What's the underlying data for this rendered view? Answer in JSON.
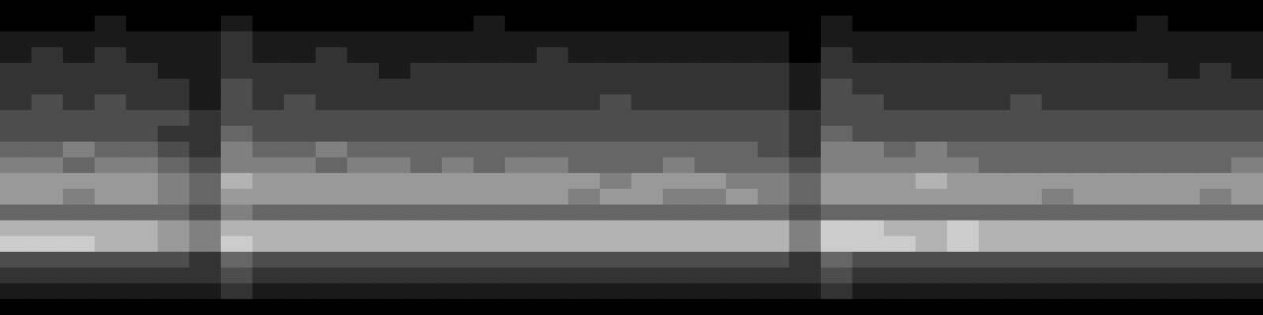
{
  "chart_data": {
    "type": "heatmap",
    "tick_labels": false,
    "grid": false,
    "color_range": [
      0,
      10
    ],
    "cells": [
      [
        0,
        0,
        0,
        0,
        0,
        0,
        0,
        0,
        0,
        0,
        0,
        0,
        0,
        0,
        0,
        0,
        0,
        0,
        0,
        0,
        0,
        0,
        0,
        0,
        0,
        0,
        0,
        0,
        0,
        0,
        0,
        0,
        0,
        0,
        0,
        0,
        0,
        0,
        0,
        0
      ],
      [
        0,
        0,
        0,
        1,
        0,
        0,
        0,
        1,
        0,
        0,
        0,
        0,
        0,
        0,
        0,
        1,
        0,
        0,
        0,
        0,
        0,
        0,
        0,
        0,
        0,
        0,
        1,
        0,
        0,
        0,
        0,
        0,
        0,
        0,
        0,
        0,
        1,
        0,
        0,
        0
      ],
      [
        1,
        1,
        1,
        1,
        1,
        1,
        1,
        2,
        1,
        1,
        1,
        1,
        1,
        1,
        1,
        1,
        1,
        1,
        1,
        1,
        1,
        1,
        1,
        1,
        1,
        0,
        1,
        1,
        1,
        1,
        1,
        1,
        1,
        1,
        1,
        1,
        1,
        1,
        1,
        1
      ],
      [
        1,
        2,
        1,
        2,
        1,
        1,
        1,
        2,
        1,
        1,
        2,
        1,
        1,
        1,
        1,
        1,
        1,
        2,
        1,
        1,
        1,
        1,
        1,
        1,
        1,
        0,
        2,
        1,
        1,
        1,
        1,
        1,
        1,
        1,
        1,
        1,
        1,
        1,
        1,
        1
      ],
      [
        2,
        2,
        2,
        2,
        2,
        1,
        1,
        2,
        2,
        2,
        2,
        2,
        1,
        2,
        2,
        2,
        2,
        2,
        2,
        2,
        2,
        2,
        2,
        2,
        2,
        1,
        2,
        2,
        2,
        2,
        2,
        2,
        2,
        2,
        2,
        2,
        2,
        1,
        2,
        1
      ],
      [
        2,
        2,
        2,
        2,
        2,
        2,
        1,
        3,
        2,
        2,
        2,
        2,
        2,
        2,
        2,
        2,
        2,
        2,
        2,
        2,
        2,
        2,
        2,
        2,
        2,
        1,
        3,
        2,
        2,
        2,
        2,
        2,
        2,
        2,
        2,
        2,
        2,
        2,
        2,
        2
      ],
      [
        2,
        3,
        2,
        3,
        2,
        2,
        1,
        3,
        2,
        3,
        2,
        2,
        2,
        2,
        2,
        2,
        2,
        2,
        2,
        3,
        2,
        2,
        2,
        2,
        2,
        1,
        3,
        3,
        2,
        2,
        2,
        2,
        3,
        2,
        2,
        2,
        2,
        2,
        2,
        2
      ],
      [
        3,
        3,
        3,
        3,
        3,
        3,
        2,
        3,
        3,
        3,
        3,
        3,
        3,
        3,
        3,
        3,
        3,
        3,
        3,
        3,
        3,
        3,
        3,
        3,
        3,
        2,
        3,
        3,
        3,
        3,
        3,
        3,
        3,
        3,
        3,
        3,
        3,
        3,
        3,
        3
      ],
      [
        3,
        3,
        3,
        3,
        3,
        2,
        2,
        4,
        3,
        3,
        3,
        3,
        3,
        3,
        3,
        3,
        3,
        3,
        3,
        3,
        3,
        3,
        3,
        3,
        3,
        2,
        4,
        3,
        3,
        3,
        3,
        3,
        3,
        3,
        3,
        3,
        3,
        3,
        3,
        3
      ],
      [
        4,
        4,
        5,
        4,
        4,
        3,
        2,
        5,
        4,
        4,
        5,
        4,
        4,
        4,
        4,
        4,
        4,
        4,
        4,
        4,
        4,
        4,
        4,
        4,
        3,
        2,
        5,
        5,
        4,
        5,
        4,
        4,
        4,
        4,
        4,
        4,
        4,
        4,
        4,
        4
      ],
      [
        5,
        5,
        4,
        5,
        5,
        4,
        3,
        5,
        5,
        5,
        4,
        5,
        5,
        4,
        5,
        4,
        5,
        5,
        4,
        4,
        4,
        5,
        4,
        4,
        4,
        3,
        5,
        5,
        5,
        5,
        5,
        4,
        4,
        4,
        4,
        4,
        4,
        4,
        4,
        5
      ],
      [
        6,
        6,
        6,
        6,
        6,
        5,
        4,
        7,
        6,
        6,
        6,
        6,
        6,
        6,
        6,
        6,
        6,
        6,
        6,
        5,
        6,
        6,
        6,
        5,
        5,
        4,
        6,
        6,
        6,
        7,
        6,
        6,
        6,
        6,
        6,
        6,
        6,
        6,
        6,
        6
      ],
      [
        6,
        6,
        5,
        6,
        6,
        5,
        4,
        6,
        6,
        6,
        6,
        6,
        6,
        6,
        6,
        6,
        6,
        6,
        5,
        6,
        6,
        5,
        5,
        6,
        5,
        4,
        6,
        6,
        6,
        6,
        6,
        6,
        6,
        5,
        6,
        6,
        6,
        6,
        5,
        6
      ],
      [
        4,
        4,
        4,
        4,
        4,
        4,
        3,
        5,
        4,
        4,
        4,
        4,
        4,
        4,
        4,
        4,
        4,
        4,
        4,
        4,
        4,
        4,
        4,
        4,
        4,
        3,
        4,
        4,
        4,
        4,
        4,
        4,
        4,
        4,
        4,
        4,
        4,
        4,
        4,
        4
      ],
      [
        7,
        7,
        7,
        7,
        7,
        6,
        5,
        7,
        7,
        7,
        7,
        7,
        7,
        7,
        7,
        7,
        7,
        7,
        7,
        7,
        7,
        7,
        7,
        7,
        7,
        5,
        8,
        8,
        7,
        7,
        8,
        7,
        7,
        7,
        7,
        7,
        7,
        7,
        7,
        7
      ],
      [
        8,
        8,
        8,
        7,
        7,
        6,
        5,
        8,
        7,
        7,
        7,
        7,
        7,
        7,
        7,
        7,
        7,
        7,
        7,
        7,
        7,
        7,
        7,
        7,
        7,
        5,
        8,
        8,
        8,
        7,
        8,
        7,
        7,
        7,
        7,
        7,
        7,
        7,
        7,
        7
      ],
      [
        3,
        3,
        3,
        3,
        3,
        3,
        2,
        4,
        3,
        3,
        3,
        3,
        3,
        3,
        3,
        3,
        3,
        3,
        3,
        3,
        3,
        3,
        3,
        3,
        3,
        2,
        4,
        3,
        3,
        3,
        3,
        3,
        3,
        3,
        3,
        3,
        3,
        3,
        3,
        3
      ],
      [
        2,
        2,
        2,
        2,
        2,
        2,
        2,
        3,
        2,
        2,
        2,
        2,
        2,
        2,
        2,
        2,
        2,
        2,
        2,
        2,
        2,
        2,
        2,
        2,
        2,
        2,
        3,
        2,
        2,
        2,
        2,
        2,
        2,
        2,
        2,
        2,
        2,
        2,
        2,
        2
      ],
      [
        1,
        1,
        1,
        1,
        1,
        1,
        1,
        2,
        1,
        1,
        1,
        1,
        1,
        1,
        1,
        1,
        1,
        1,
        1,
        1,
        1,
        1,
        1,
        1,
        1,
        1,
        2,
        1,
        1,
        1,
        1,
        1,
        1,
        1,
        1,
        1,
        1,
        1,
        1,
        1
      ],
      [
        0,
        0,
        0,
        0,
        0,
        0,
        0,
        0,
        0,
        0,
        0,
        0,
        0,
        0,
        0,
        0,
        0,
        0,
        0,
        0,
        0,
        0,
        0,
        0,
        0,
        0,
        0,
        0,
        0,
        0,
        0,
        0,
        0,
        0,
        0,
        0,
        0,
        0,
        0,
        0
      ]
    ]
  }
}
